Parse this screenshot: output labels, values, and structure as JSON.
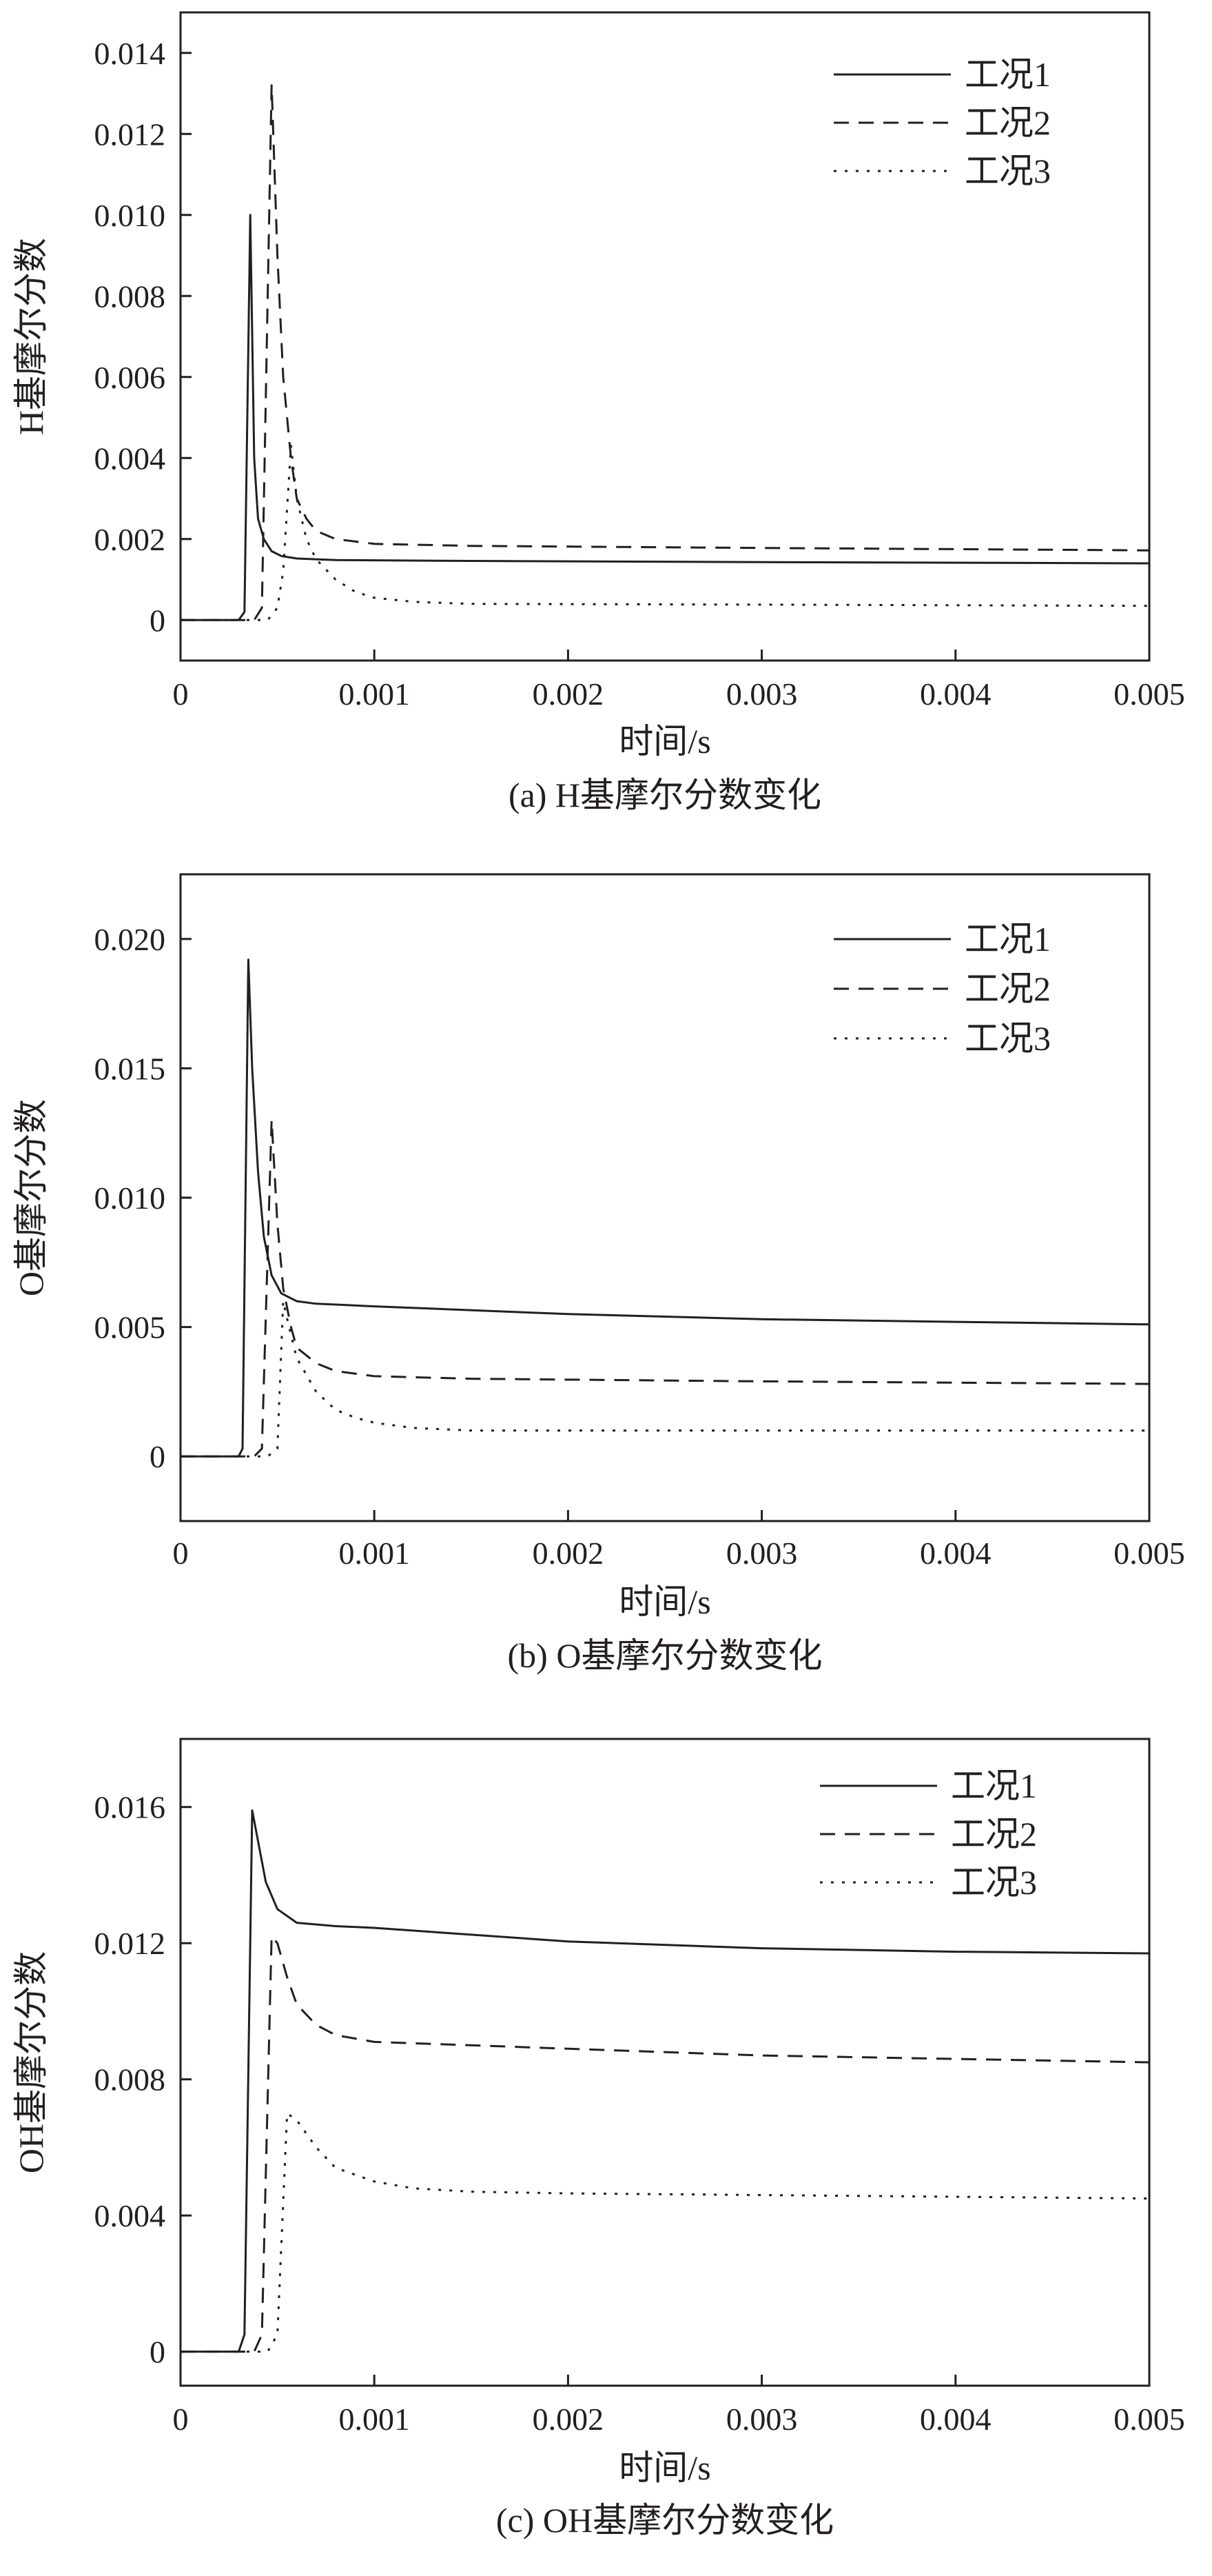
{
  "chart_data": [
    {
      "type": "line",
      "caption": "(a) H基摩尔分数变化",
      "xlabel": "时间/s",
      "ylabel": "H基摩尔分数",
      "xlim": [
        0,
        0.005
      ],
      "ylim": [
        -0.001,
        0.015
      ],
      "x_ticks": [
        "0",
        "0.001",
        "0.002",
        "0.003",
        "0.004",
        "0.005"
      ],
      "y_ticks": [
        "0",
        "0.002",
        "0.004",
        "0.006",
        "0.008",
        "0.010",
        "0.012",
        "0.014"
      ],
      "legend_position": "top-right",
      "series": [
        {
          "name": "工况1",
          "style": "solid",
          "x": [
            0,
            0.0003,
            0.00033,
            0.00036,
            0.00038,
            0.0004,
            0.00043,
            0.00047,
            0.00052,
            0.0006,
            0.0008,
            0.0015,
            0.003,
            0.005
          ],
          "y": [
            0,
            0,
            0.0002,
            0.01,
            0.004,
            0.0025,
            0.002,
            0.0017,
            0.00158,
            0.00152,
            0.00148,
            0.00146,
            0.00143,
            0.0014
          ]
        },
        {
          "name": "工况2",
          "style": "dashed",
          "x": [
            0,
            0.00038,
            0.00042,
            0.00047,
            0.0005,
            0.00053,
            0.00057,
            0.0006,
            0.00065,
            0.0007,
            0.0008,
            0.001,
            0.0015,
            0.003,
            0.005
          ],
          "y": [
            0,
            0,
            0.0003,
            0.0132,
            0.009,
            0.006,
            0.004,
            0.003,
            0.0025,
            0.0022,
            0.002,
            0.00188,
            0.00183,
            0.00178,
            0.00172
          ]
        },
        {
          "name": "工况3",
          "style": "dotted",
          "x": [
            0,
            0.00045,
            0.0005,
            0.00053,
            0.00057,
            0.0006,
            0.00065,
            0.0007,
            0.0008,
            0.0009,
            0.001,
            0.0012,
            0.0015,
            0.003,
            0.005
          ],
          "y": [
            0,
            0,
            0.0003,
            0.0012,
            0.0043,
            0.003,
            0.002,
            0.0015,
            0.001,
            0.0007,
            0.00055,
            0.00045,
            0.0004,
            0.00038,
            0.00035
          ]
        }
      ]
    },
    {
      "type": "line",
      "caption": "(b) O基摩尔分数变化",
      "xlabel": "时间/s",
      "ylabel": "O基摩尔分数",
      "xlim": [
        0,
        0.005
      ],
      "ylim": [
        -0.0025,
        0.0225
      ],
      "x_ticks": [
        "0",
        "0.001",
        "0.002",
        "0.003",
        "0.004",
        "0.005"
      ],
      "y_ticks": [
        "0",
        "0.005",
        "0.010",
        "0.015",
        "0.020"
      ],
      "legend_position": "top-right",
      "series": [
        {
          "name": "工况1",
          "style": "solid",
          "x": [
            0,
            0.0003,
            0.00032,
            0.00035,
            0.00037,
            0.0004,
            0.00043,
            0.00047,
            0.00052,
            0.0006,
            0.0007,
            0.001,
            0.002,
            0.003,
            0.004,
            0.005
          ],
          "y": [
            0,
            0,
            0.0003,
            0.0192,
            0.015,
            0.011,
            0.0085,
            0.007,
            0.0063,
            0.006,
            0.0059,
            0.0058,
            0.0055,
            0.0053,
            0.0052,
            0.0051
          ]
        },
        {
          "name": "工况2",
          "style": "dashed",
          "x": [
            0,
            0.00038,
            0.00042,
            0.00047,
            0.0005,
            0.00053,
            0.00057,
            0.0006,
            0.0007,
            0.0008,
            0.001,
            0.0015,
            0.003,
            0.005
          ],
          "y": [
            0,
            0,
            0.0003,
            0.013,
            0.009,
            0.0065,
            0.005,
            0.0042,
            0.0036,
            0.0033,
            0.0031,
            0.003,
            0.0029,
            0.0028
          ]
        },
        {
          "name": "工况3",
          "style": "dotted",
          "x": [
            0,
            0.00045,
            0.0005,
            0.00053,
            0.00056,
            0.0006,
            0.0007,
            0.0008,
            0.0009,
            0.001,
            0.0012,
            0.0015,
            0.003,
            0.005
          ],
          "y": [
            0,
            0,
            0.0003,
            0.006,
            0.005,
            0.0038,
            0.0025,
            0.0018,
            0.0015,
            0.0013,
            0.0011,
            0.001,
            0.001,
            0.001
          ]
        }
      ]
    },
    {
      "type": "line",
      "caption": "(c) OH基摩尔分数变化",
      "xlabel": "时间/s",
      "ylabel": "OH基摩尔分数",
      "xlim": [
        0,
        0.005
      ],
      "ylim": [
        -0.001,
        0.018
      ],
      "x_ticks": [
        "0",
        "0.001",
        "0.002",
        "0.003",
        "0.004",
        "0.005"
      ],
      "y_ticks": [
        "0",
        "0.004",
        "0.008",
        "0.012",
        "0.016"
      ],
      "legend_position": "top-right",
      "series": [
        {
          "name": "工况1",
          "style": "solid",
          "x": [
            0,
            0.0003,
            0.00033,
            0.00037,
            0.0004,
            0.00044,
            0.0005,
            0.0006,
            0.0008,
            0.001,
            0.0015,
            0.002,
            0.003,
            0.004,
            0.005
          ],
          "y": [
            0,
            0,
            0.0005,
            0.0159,
            0.015,
            0.0138,
            0.013,
            0.0126,
            0.0125,
            0.01245,
            0.01225,
            0.01205,
            0.01185,
            0.01175,
            0.0117
          ]
        },
        {
          "name": "工况2",
          "style": "dashed",
          "x": [
            0,
            0.00038,
            0.00042,
            0.00047,
            0.0005,
            0.00055,
            0.0006,
            0.0007,
            0.0008,
            0.001,
            0.0015,
            0.002,
            0.003,
            0.004,
            0.005
          ],
          "y": [
            0,
            0,
            0.0005,
            0.0122,
            0.012,
            0.011,
            0.0102,
            0.0096,
            0.0093,
            0.0091,
            0.009,
            0.0089,
            0.0087,
            0.0086,
            0.0085
          ]
        },
        {
          "name": "工况3",
          "style": "dotted",
          "x": [
            0,
            0.00045,
            0.0005,
            0.00055,
            0.0006,
            0.0007,
            0.0008,
            0.001,
            0.0012,
            0.0015,
            0.002,
            0.003,
            0.005
          ],
          "y": [
            0,
            0,
            0.0005,
            0.007,
            0.0068,
            0.006,
            0.0054,
            0.005,
            0.0048,
            0.0047,
            0.00465,
            0.0046,
            0.0045
          ]
        }
      ]
    }
  ]
}
